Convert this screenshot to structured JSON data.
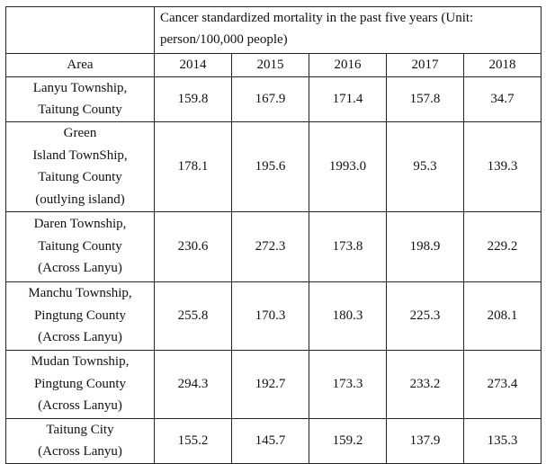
{
  "table": {
    "header_title": "Cancer standardized mortality in the past five years (Unit: person/100,000 people)",
    "area_header": "Area",
    "years": [
      "2014",
      "2015",
      "2016",
      "2017",
      "2018"
    ],
    "rows": [
      {
        "area": [
          "Lanyu Township,",
          "Taitung County"
        ],
        "values": [
          "159.8",
          "167.9",
          "171.4",
          "157.8",
          "34.7"
        ]
      },
      {
        "area": [
          "Green",
          "Island TownShip,",
          "Taitung County",
          "(outlying island)"
        ],
        "values": [
          "178.1",
          "195.6",
          "1993.0",
          "95.3",
          "139.3"
        ]
      },
      {
        "area": [
          "Daren Township,",
          "Taitung County",
          "(Across Lanyu)"
        ],
        "values": [
          "230.6",
          "272.3",
          "173.8",
          "198.9",
          "229.2"
        ]
      },
      {
        "area": [
          "Manchu Township,",
          "Pingtung County",
          "(Across Lanyu)"
        ],
        "values": [
          "255.8",
          "170.3",
          "180.3",
          "225.3",
          "208.1"
        ]
      },
      {
        "area": [
          "Mudan Township,",
          "Pingtung County",
          "(Across Lanyu)"
        ],
        "values": [
          "294.3",
          "192.7",
          "173.3",
          "233.2",
          "273.4"
        ]
      },
      {
        "area": [
          "Taitung City",
          "(Across Lanyu)"
        ],
        "values": [
          "155.2",
          "145.7",
          "159.2",
          "137.9",
          "135.3"
        ]
      }
    ]
  }
}
